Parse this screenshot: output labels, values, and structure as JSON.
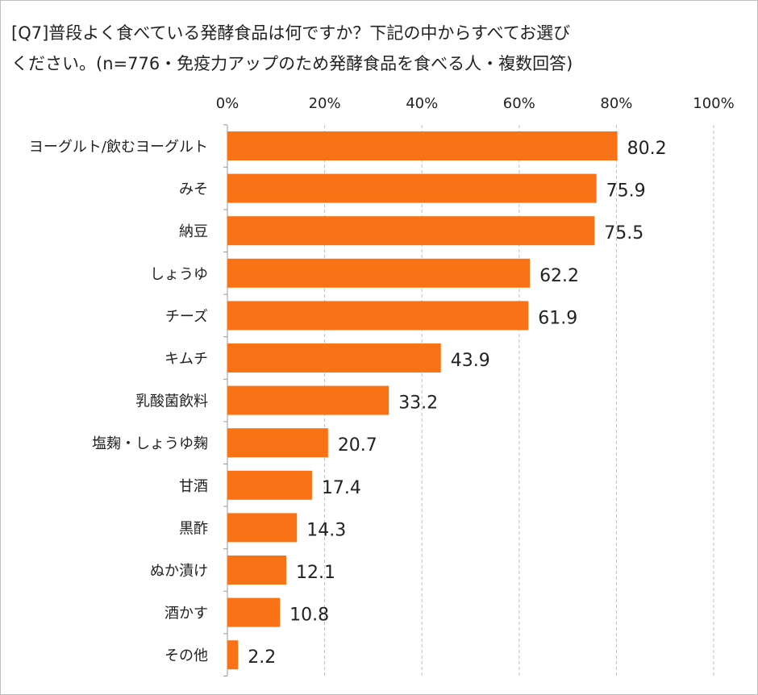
{
  "chart_data": {
    "type": "bar",
    "orientation": "horizontal",
    "title_line1": "[Q7]普段よく食べている発酵食品は何ですか？下記の中からすべてお選び",
    "title_line2": "ください。(n=776・免疫力アップのため発酵食品を食べる人・複数回答)",
    "categories": [
      "ヨーグルト/飲むヨーグルト",
      "みそ",
      "納豆",
      "しょうゆ",
      "チーズ",
      "キムチ",
      "乳酸菌飲料",
      "塩麹・しょうゆ麹",
      "甘酒",
      "黒酢",
      "ぬか漬け",
      "酒かす",
      "その他"
    ],
    "values": [
      80.2,
      75.9,
      75.5,
      62.2,
      61.9,
      43.9,
      33.2,
      20.7,
      17.4,
      14.3,
      12.1,
      10.8,
      2.2
    ],
    "value_labels": [
      "80.2",
      "75.9",
      "75.5",
      "62.2",
      "61.9",
      "43.9",
      "33.2",
      "20.7",
      "17.4",
      "14.3",
      "12.1",
      "10.8",
      "2.2"
    ],
    "xticks": [
      "0%",
      "20%",
      "40%",
      "60%",
      "80%",
      "100%"
    ],
    "xlim": [
      0,
      100
    ],
    "grid": true,
    "axis_position": "top",
    "bar_color": "#f97316"
  }
}
